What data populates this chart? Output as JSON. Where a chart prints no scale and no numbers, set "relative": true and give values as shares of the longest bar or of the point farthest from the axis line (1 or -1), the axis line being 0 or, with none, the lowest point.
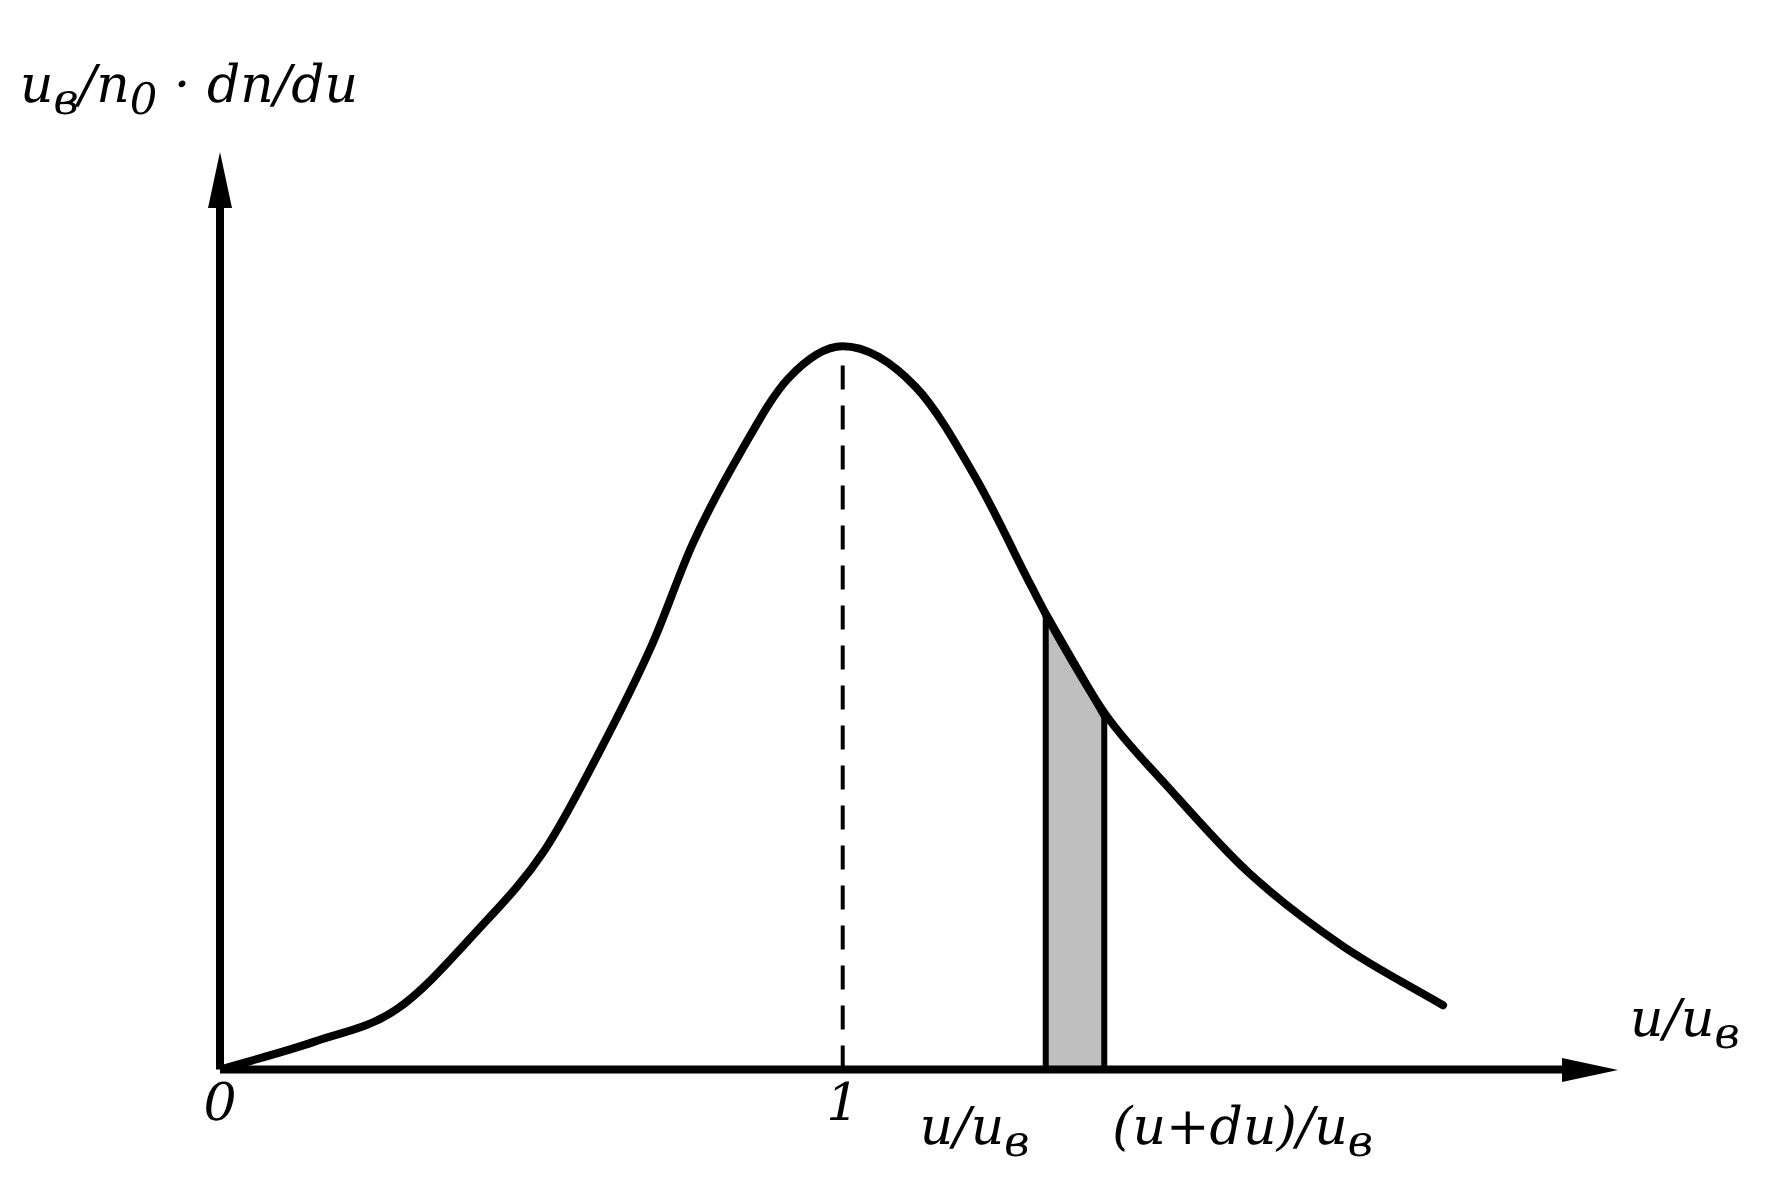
{
  "chart_data": {
    "type": "line",
    "relative": true,
    "xlabel": "u/u$_{в}$",
    "ylabel": "u$_{в}$/n$_{0}$ · dn/du",
    "x": [
      0,
      0.153,
      0.283,
      0.414,
      0.521,
      0.609,
      0.694,
      0.759,
      0.837,
      0.912,
      1,
      1.117,
      1.215,
      1.303,
      1.345,
      1.423,
      1.521,
      1.651,
      1.801,
      1.964
    ],
    "series": [
      {
        "color": "#000000",
        "values": [
          0,
          0.039,
          0.083,
          0.193,
          0.303,
          0.439,
          0.588,
          0.727,
          0.855,
          0.955,
          1,
          0.944,
          0.816,
          0.668,
          0.6,
          0.49,
          0.392,
          0.273,
          0.172,
          0.089
        ]
      },
      {
        "type": "area",
        "color": "#000000",
        "x": [
          1.326,
          1.42
        ],
        "values": [
          0.63,
          0.49
        ]
      }
    ],
    "xlim": [
      0,
      2.2
    ],
    "xticks": [
      0,
      1
    ],
    "ref_lines": [
      {
        "axis": "x",
        "value": 1,
        "line_style": "dashed",
        "color": "#000000"
      }
    ],
    "annotations": [
      "u/u$_{в}$",
      "(u+du)/u$_{в}$"
    ],
    "marker": "none",
    "line_style": "solid",
    "grid": false,
    "legend": false
  }
}
